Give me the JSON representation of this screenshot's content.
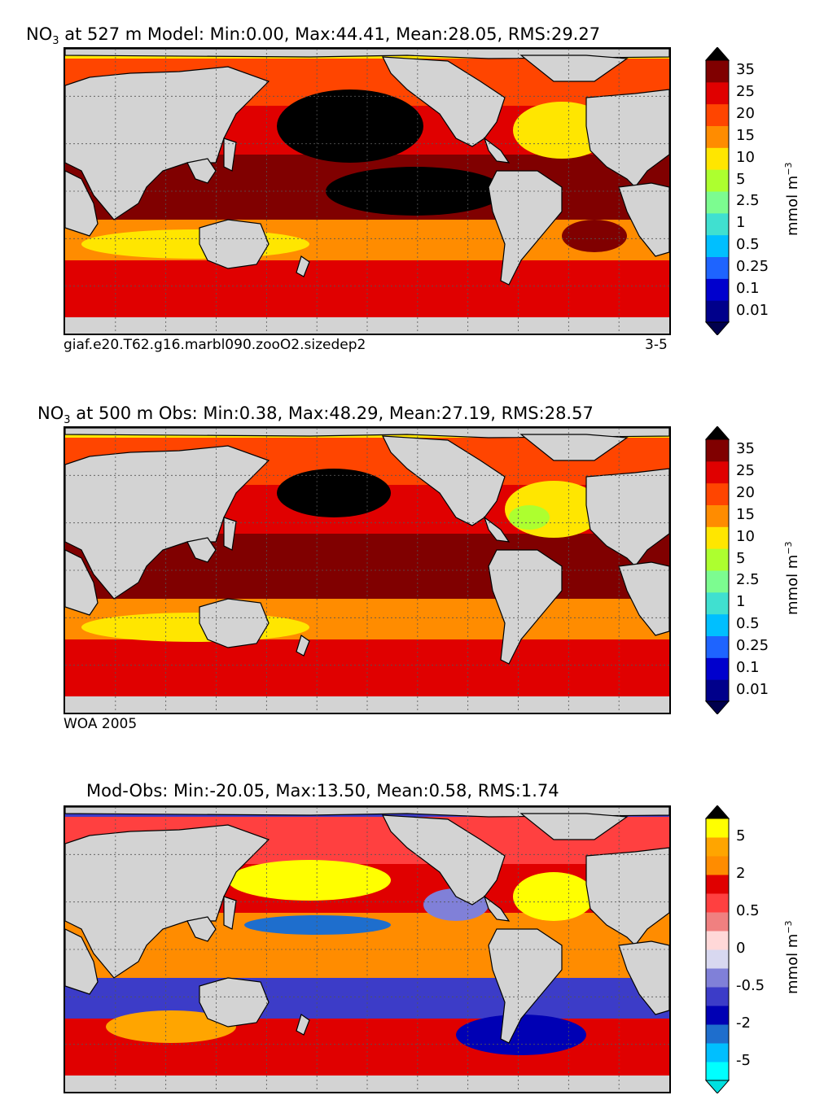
{
  "chart_data": [
    {
      "type": "heatmap",
      "panel": "model",
      "title": {
        "species": "NO",
        "sub": "3",
        "rest": " at 527 m Model: Min:0.00, Max:44.41, Mean:28.05, RMS:29.27"
      },
      "stats": {
        "min": 0.0,
        "max": 44.41,
        "mean": 28.05,
        "rms": 29.27,
        "depth_m": 527
      },
      "caption_left": "giaf.e20.T62.g16.marbl090.zooO2.sizedep2",
      "caption_right": "3-5",
      "colorbar": {
        "levels": [
          "0.01",
          "0.1",
          "0.25",
          "0.5",
          "1",
          "2.5",
          "5",
          "10",
          "15",
          "20",
          "25",
          "35"
        ],
        "colors": [
          "#00008b",
          "#0000cd",
          "#1e64ff",
          "#00bfff",
          "#40e0d0",
          "#7cfc90",
          "#adff2f",
          "#ffe600",
          "#ff8c00",
          "#ff4500",
          "#e00000",
          "#800000"
        ],
        "extend_colors": {
          "under": "#00004d",
          "over": "#000000"
        },
        "unit": {
          "text": "mmol m",
          "sup": "−3"
        }
      },
      "xlabel": "",
      "ylabel": ""
    },
    {
      "type": "heatmap",
      "panel": "obs",
      "title": {
        "species": "NO",
        "sub": "3",
        "rest": " at 500 m Obs: Min:0.38, Max:48.29, Mean:27.19, RMS:28.57"
      },
      "stats": {
        "min": 0.38,
        "max": 48.29,
        "mean": 27.19,
        "rms": 28.57,
        "depth_m": 500
      },
      "caption_left": "WOA 2005",
      "colorbar": {
        "levels": [
          "0.01",
          "0.1",
          "0.25",
          "0.5",
          "1",
          "2.5",
          "5",
          "10",
          "15",
          "20",
          "25",
          "35"
        ],
        "colors": [
          "#00008b",
          "#0000cd",
          "#1e64ff",
          "#00bfff",
          "#40e0d0",
          "#7cfc90",
          "#adff2f",
          "#ffe600",
          "#ff8c00",
          "#ff4500",
          "#e00000",
          "#800000"
        ],
        "extend_colors": {
          "under": "#00004d",
          "over": "#000000"
        },
        "unit": {
          "text": "mmol m",
          "sup": "−3"
        }
      },
      "xlabel": "",
      "ylabel": ""
    },
    {
      "type": "heatmap",
      "panel": "difference",
      "title": {
        "rest": "Mod-Obs: Min:-20.05, Max:13.50, Mean:0.58, RMS:1.74"
      },
      "stats": {
        "min": -20.05,
        "max": 13.5,
        "mean": 0.58,
        "rms": 1.74
      },
      "colorbar": {
        "labels": [
          "-5",
          "-2",
          "-0.5",
          "0",
          "0.5",
          "2",
          "5"
        ],
        "colors": [
          "#00ffff",
          "#00bfff",
          "#1e6ecd",
          "#0000b4",
          "#3c3cc8",
          "#8080d8",
          "#d8d8f0",
          "#ffd8d8",
          "#f08080",
          "#ff4040",
          "#e00000",
          "#ff8c00",
          "#ffa500",
          "#ffff00"
        ],
        "extend_colors": {
          "under": "#00e0e0",
          "over": "#000000"
        },
        "unit": {
          "text": "mmol m",
          "sup": "−3"
        }
      },
      "xlabel": "",
      "ylabel": ""
    }
  ],
  "colors": {
    "land": "#d3d3d3",
    "no_data": "#ffffff",
    "grid": "#555555",
    "coast": "#000000"
  }
}
